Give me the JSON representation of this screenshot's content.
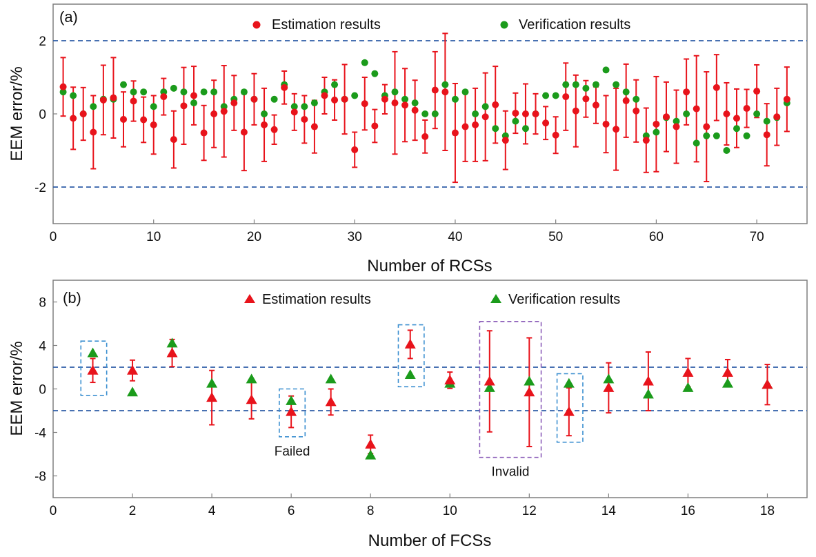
{
  "chart_data": [
    {
      "panel": "(a)",
      "type": "scatter",
      "xlabel": "Number of RCSs",
      "ylabel": "EEM error/%",
      "xlim": [
        0,
        75
      ],
      "ylim": [
        -3,
        3
      ],
      "xticks": [
        0,
        10,
        20,
        30,
        40,
        50,
        60,
        70
      ],
      "yticks": [
        -2,
        0,
        2
      ],
      "threshold_lines": [
        2,
        -2
      ],
      "colors": {
        "estimation": "#e8131b",
        "verification": "#1b9b1b",
        "threshold": "#2e5da8",
        "axis": "#7f7f7f"
      },
      "legend": {
        "estimation": "Estimation results",
        "verification": "Verification results",
        "position": "top"
      },
      "estimation": {
        "name": "Estimation results",
        "x": [
          1,
          2,
          3,
          4,
          5,
          6,
          7,
          8,
          9,
          10,
          11,
          12,
          13,
          14,
          15,
          16,
          17,
          18,
          19,
          20,
          21,
          22,
          23,
          24,
          25,
          26,
          27,
          28,
          29,
          30,
          31,
          32,
          33,
          34,
          35,
          36,
          37,
          38,
          39,
          40,
          41,
          42,
          43,
          44,
          45,
          46,
          47,
          48,
          49,
          50,
          51,
          52,
          53,
          54,
          55,
          56,
          57,
          58,
          59,
          60,
          61,
          62,
          63,
          64,
          65,
          66,
          67,
          68,
          69,
          70,
          71,
          72,
          73
        ],
        "y": [
          0.74,
          -0.12,
          0.0,
          -0.5,
          0.38,
          0.44,
          -0.15,
          0.35,
          -0.16,
          -0.3,
          0.47,
          -0.7,
          0.22,
          0.5,
          -0.52,
          0.0,
          0.07,
          0.3,
          -0.5,
          0.4,
          -0.3,
          -0.43,
          0.72,
          0.05,
          -0.15,
          -0.35,
          0.5,
          0.38,
          0.4,
          -0.98,
          0.28,
          -0.33,
          0.4,
          0.3,
          0.24,
          0.1,
          -0.62,
          0.65,
          0.6,
          -0.52,
          -0.35,
          -0.3,
          -0.08,
          0.25,
          -0.72,
          0.02,
          0.0,
          0.0,
          -0.25,
          -0.58,
          0.47,
          0.08,
          0.41,
          0.24,
          -0.28,
          -0.42,
          0.36,
          0.08,
          -0.72,
          -0.28,
          -0.08,
          -0.35,
          0.6,
          0.14,
          -0.35,
          0.72,
          0.0,
          -0.12,
          0.15,
          0.62,
          -0.57,
          -0.08,
          0.4
        ],
        "err": [
          0.8,
          0.85,
          0.72,
          1.0,
          0.95,
          1.1,
          0.75,
          0.55,
          0.62,
          0.8,
          0.5,
          0.78,
          1.05,
          0.8,
          0.75,
          0.92,
          1.25,
          0.75,
          1.05,
          0.7,
          1.0,
          0.4,
          0.45,
          0.5,
          0.65,
          0.72,
          0.5,
          0.55,
          0.95,
          0.48,
          0.72,
          0.45,
          0.4,
          1.4,
          1.0,
          0.82,
          0.45,
          1.05,
          1.6,
          1.35,
          0.95,
          1.0,
          1.2,
          1.05,
          0.8,
          0.55,
          0.82,
          0.55,
          0.45,
          0.5,
          0.92,
          0.98,
          0.5,
          0.5,
          0.78,
          1.12,
          1.0,
          0.85,
          0.88,
          1.3,
          0.95,
          1.0,
          0.9,
          1.45,
          1.5,
          0.9,
          0.85,
          0.8,
          0.52,
          0.72,
          0.85,
          0.78,
          0.88
        ]
      },
      "verification": {
        "name": "Verification results",
        "x": [
          1,
          2,
          3,
          4,
          5,
          6,
          7,
          8,
          9,
          10,
          11,
          12,
          13,
          14,
          15,
          16,
          17,
          18,
          19,
          20,
          21,
          22,
          23,
          24,
          25,
          26,
          27,
          28,
          29,
          30,
          31,
          32,
          33,
          34,
          35,
          36,
          37,
          38,
          39,
          40,
          41,
          42,
          43,
          44,
          45,
          46,
          47,
          48,
          49,
          50,
          51,
          52,
          53,
          54,
          55,
          56,
          57,
          58,
          59,
          60,
          61,
          62,
          63,
          64,
          65,
          66,
          67,
          68,
          69,
          70,
          71,
          72,
          73
        ],
        "y": [
          0.6,
          0.5,
          0.0,
          0.2,
          0.4,
          0.4,
          0.8,
          0.6,
          0.6,
          0.2,
          0.6,
          0.7,
          0.6,
          0.3,
          0.6,
          0.6,
          0.2,
          0.4,
          0.6,
          0.4,
          0.0,
          0.4,
          0.8,
          0.2,
          0.2,
          0.3,
          0.6,
          0.8,
          0.4,
          0.5,
          1.4,
          1.1,
          0.5,
          0.6,
          0.4,
          0.3,
          0.0,
          0.0,
          0.8,
          0.4,
          0.6,
          0.0,
          0.2,
          -0.4,
          -0.6,
          -0.2,
          -0.4,
          0.0,
          0.5,
          0.5,
          0.8,
          0.8,
          0.7,
          0.8,
          1.2,
          0.8,
          0.6,
          0.4,
          -0.6,
          -0.5,
          -0.1,
          -0.2,
          0.0,
          -0.8,
          -0.6,
          -0.6,
          -1.0,
          -0.4,
          -0.6,
          0.0,
          -0.2,
          -0.1,
          0.3
        ]
      }
    },
    {
      "panel": "(b)",
      "type": "scatter",
      "xlabel": "Number of FCSs",
      "ylabel": "EEM error/%",
      "xlim": [
        0,
        19
      ],
      "ylim": [
        -10,
        10
      ],
      "xticks": [
        0,
        2,
        4,
        6,
        8,
        10,
        12,
        14,
        16,
        18
      ],
      "yticks": [
        -8,
        -4,
        0,
        4,
        8
      ],
      "threshold_lines": [
        2,
        -2
      ],
      "colors": {
        "estimation": "#e8131b",
        "verification": "#1b9b1b",
        "threshold": "#2e5da8",
        "box_failed": "#3b8fd0",
        "box_invalid": "#8a5cb8",
        "axis": "#7f7f7f"
      },
      "legend": {
        "estimation": "Estimation results",
        "verification": "Verification results",
        "position": "top"
      },
      "estimation": {
        "name": "Estimation results",
        "x": [
          1,
          2,
          3,
          4,
          5,
          6,
          7,
          8,
          9,
          10,
          11,
          12,
          13,
          14,
          15,
          16,
          17,
          18
        ],
        "y": [
          1.7,
          1.7,
          3.3,
          -0.8,
          -1.0,
          -2.1,
          -1.2,
          -5.1,
          4.1,
          0.8,
          0.7,
          -0.3,
          -2.1,
          0.1,
          0.7,
          1.5,
          1.5,
          0.4
        ],
        "err": [
          1.1,
          0.95,
          1.25,
          2.5,
          1.75,
          1.45,
          1.2,
          0.85,
          1.3,
          0.75,
          4.65,
          5.0,
          2.2,
          2.3,
          2.7,
          1.3,
          1.2,
          1.85
        ]
      },
      "verification": {
        "name": "Verification results",
        "x": [
          1,
          2,
          3,
          4,
          5,
          6,
          7,
          8,
          9,
          10,
          11,
          12,
          13,
          14,
          15,
          16,
          17,
          18
        ],
        "y": [
          3.3,
          -0.3,
          4.2,
          0.5,
          0.9,
          -1.1,
          0.9,
          -6.1,
          1.3,
          0.5,
          0.1,
          0.7,
          0.5,
          0.9,
          -0.5,
          0.1,
          0.5,
          0.4
        ]
      },
      "annotations": [
        {
          "label": "",
          "style": "failed",
          "x0": 0.7,
          "x1": 1.35,
          "y0": -0.6,
          "y1": 4.4
        },
        {
          "label": "Failed",
          "style": "failed",
          "x0": 5.7,
          "x1": 6.35,
          "y0": -4.4,
          "y1": 0.0
        },
        {
          "label": "",
          "style": "failed",
          "x0": 8.7,
          "x1": 9.35,
          "y0": 0.2,
          "y1": 5.9
        },
        {
          "label": "Invalid",
          "style": "invalid",
          "x0": 10.75,
          "x1": 12.3,
          "y0": -6.3,
          "y1": 6.2
        },
        {
          "label": "",
          "style": "failed",
          "x0": 12.7,
          "x1": 13.35,
          "y0": -4.9,
          "y1": 1.4
        }
      ]
    }
  ]
}
